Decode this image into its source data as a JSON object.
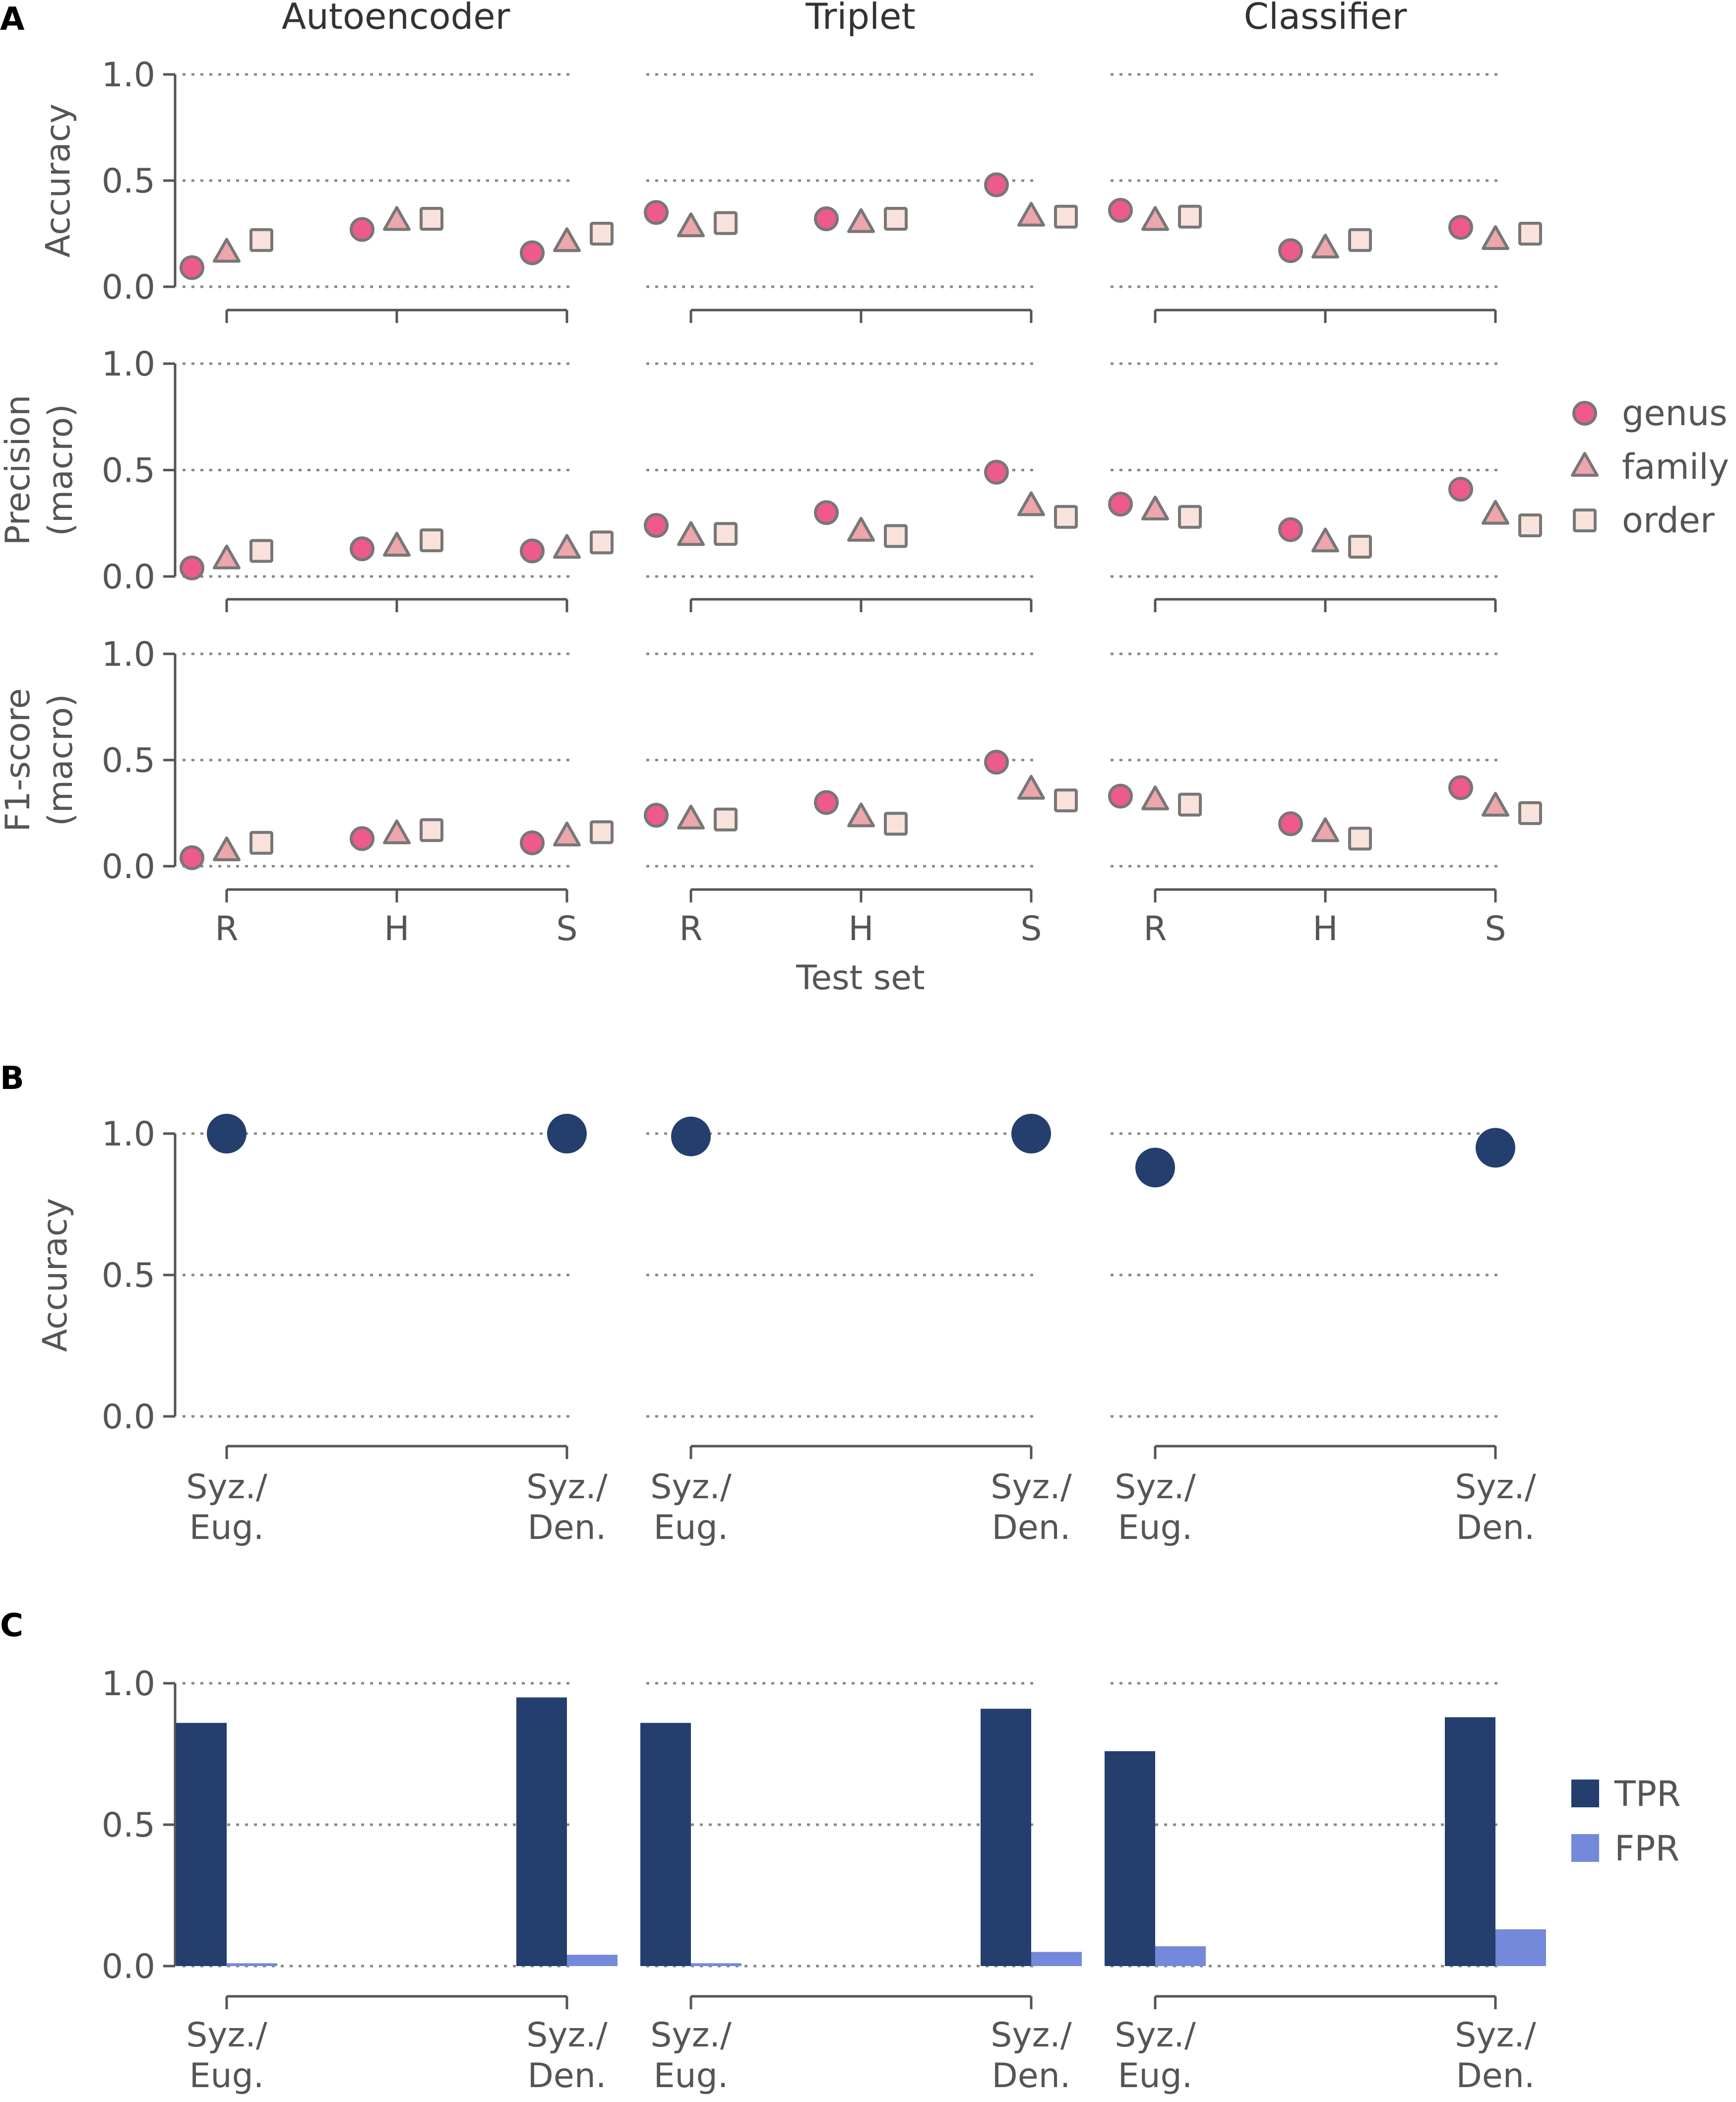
{
  "panels": {
    "a": "A",
    "b": "B",
    "c": "C"
  },
  "columns": [
    "Autoencoder",
    "Triplet",
    "Classifier"
  ],
  "test_set_label": "Test set",
  "colors": {
    "genus": "#EE5A8C",
    "family": "#EDA6AB",
    "order": "#F9E2DC",
    "marker_edge": "#777777",
    "axis": "#555555",
    "grid": "#888888",
    "accuracy_dot": "#243F6E",
    "tpr": "#243F6E",
    "fpr": "#7489D9"
  },
  "chart_data": [
    {
      "id": "A",
      "type": "scatter",
      "categories": [
        "R",
        "H",
        "S"
      ],
      "xlabel": "Test set",
      "ylim": [
        0,
        1
      ],
      "yticks": [
        "0.0",
        "0.5",
        "1.0"
      ],
      "legend": {
        "position": "right",
        "entries": [
          {
            "key": "genus",
            "label": "genus",
            "marker": "circle"
          },
          {
            "key": "family",
            "label": "family",
            "marker": "triangle"
          },
          {
            "key": "order",
            "label": "order",
            "marker": "square"
          }
        ]
      },
      "rows": [
        {
          "ylabel": [
            "Accuracy"
          ],
          "methods": [
            {
              "name": "Autoencoder",
              "genus": [
                0.09,
                0.27,
                0.16
              ],
              "family": [
                0.16,
                0.31,
                0.21
              ],
              "order": [
                0.22,
                0.32,
                0.25
              ]
            },
            {
              "name": "Triplet",
              "genus": [
                0.35,
                0.32,
                0.48
              ],
              "family": [
                0.28,
                0.3,
                0.33
              ],
              "order": [
                0.3,
                0.32,
                0.33
              ]
            },
            {
              "name": "Classifier",
              "genus": [
                0.36,
                0.17,
                0.28
              ],
              "family": [
                0.31,
                0.18,
                0.22
              ],
              "order": [
                0.33,
                0.22,
                0.25
              ]
            }
          ]
        },
        {
          "ylabel": [
            "Precision",
            "(macro)"
          ],
          "methods": [
            {
              "name": "Autoencoder",
              "genus": [
                0.04,
                0.13,
                0.12
              ],
              "family": [
                0.08,
                0.14,
                0.13
              ],
              "order": [
                0.12,
                0.17,
                0.16
              ]
            },
            {
              "name": "Triplet",
              "genus": [
                0.24,
                0.3,
                0.49
              ],
              "family": [
                0.19,
                0.21,
                0.33
              ],
              "order": [
                0.2,
                0.19,
                0.28
              ]
            },
            {
              "name": "Classifier",
              "genus": [
                0.34,
                0.22,
                0.41
              ],
              "family": [
                0.31,
                0.16,
                0.29
              ],
              "order": [
                0.28,
                0.14,
                0.24
              ]
            }
          ]
        },
        {
          "ylabel": [
            "F1-score",
            "(macro)"
          ],
          "methods": [
            {
              "name": "Autoencoder",
              "genus": [
                0.04,
                0.13,
                0.11
              ],
              "family": [
                0.07,
                0.15,
                0.14
              ],
              "order": [
                0.11,
                0.17,
                0.16
              ]
            },
            {
              "name": "Triplet",
              "genus": [
                0.24,
                0.3,
                0.49
              ],
              "family": [
                0.22,
                0.23,
                0.36
              ],
              "order": [
                0.22,
                0.2,
                0.31
              ]
            },
            {
              "name": "Classifier",
              "genus": [
                0.33,
                0.2,
                0.37
              ],
              "family": [
                0.31,
                0.16,
                0.28
              ],
              "order": [
                0.29,
                0.13,
                0.25
              ]
            }
          ]
        }
      ]
    },
    {
      "id": "B",
      "type": "scatter",
      "categories": [
        "Syz./\nEug.",
        "Syz./\nDen."
      ],
      "ylabel": "Accuracy",
      "ylim": [
        0,
        1
      ],
      "yticks": [
        "0.0",
        "0.5",
        "1.0"
      ],
      "series": [
        {
          "name": "Autoencoder",
          "values": [
            1.0,
            1.0
          ]
        },
        {
          "name": "Triplet",
          "values": [
            0.99,
            1.0
          ]
        },
        {
          "name": "Classifier",
          "values": [
            0.88,
            0.95
          ]
        }
      ]
    },
    {
      "id": "C",
      "type": "bar",
      "categories": [
        "Syz./\nEug.",
        "Syz./\nDen."
      ],
      "ylim": [
        0,
        1
      ],
      "yticks": [
        "0.0",
        "0.5",
        "1.0"
      ],
      "legend": {
        "position": "right",
        "entries": [
          "TPR",
          "FPR"
        ]
      },
      "series": [
        {
          "name": "Autoencoder",
          "TPR": [
            0.86,
            0.95
          ],
          "FPR": [
            0.01,
            0.04
          ]
        },
        {
          "name": "Triplet",
          "TPR": [
            0.86,
            0.91
          ],
          "FPR": [
            0.01,
            0.05
          ]
        },
        {
          "name": "Classifier",
          "TPR": [
            0.76,
            0.88
          ],
          "FPR": [
            0.07,
            0.13
          ]
        }
      ]
    }
  ]
}
